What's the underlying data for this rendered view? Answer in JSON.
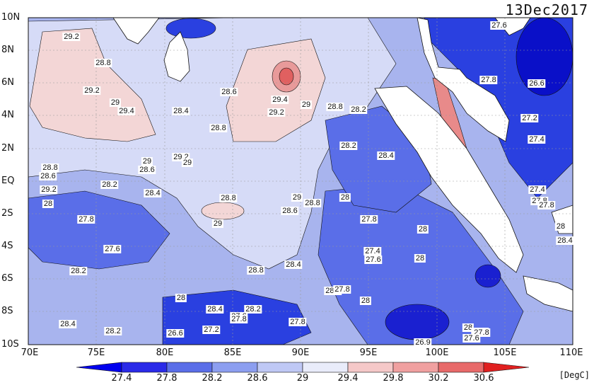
{
  "date": "13Dec2017",
  "units": "[DegC]",
  "map": {
    "lat_labels": [
      "10N",
      "8N",
      "6N",
      "4N",
      "2N",
      "EQ",
      "2S",
      "4S",
      "6S",
      "8S",
      "10S"
    ],
    "lon_labels": [
      "70E",
      "75E",
      "80E",
      "85E",
      "90E",
      "95E",
      "100E",
      "105E",
      "110E"
    ],
    "lon_range": [
      70,
      110
    ],
    "lat_range": [
      -10,
      10
    ],
    "contour_labels": [
      "29.2",
      "28.8",
      "29.2",
      "29",
      "29.4",
      "28.4",
      "28.8",
      "28.6",
      "29.4",
      "29.2",
      "29",
      "28.8",
      "28.2",
      "27.6",
      "27.8",
      "26.6",
      "27.2",
      "27.4",
      "28.2",
      "28.4",
      "29.2",
      "29",
      "28.8",
      "28.6",
      "29.2",
      "29",
      "28.6",
      "28",
      "28.2",
      "28.4",
      "28.8",
      "29",
      "28.8",
      "28.6",
      "28",
      "27.8",
      "27.8",
      "29",
      "28",
      "27.6",
      "27.4",
      "27.6",
      "27.4",
      "27.8",
      "27.8",
      "28",
      "28.4",
      "28.2",
      "28.8",
      "28.4",
      "28",
      "28.2",
      "27.8",
      "28",
      "28.4",
      "28.2",
      "27.6",
      "27.8",
      "28.4",
      "28.2",
      "26.6",
      "27.2",
      "27.8",
      "28",
      "27.8",
      "26.9",
      "28",
      "27.8",
      "27.6"
    ]
  },
  "colorbar": {
    "ticks": [
      "27.4",
      "27.8",
      "28.2",
      "28.6",
      "29",
      "29.4",
      "29.8",
      "30.2",
      "30.6"
    ],
    "colors": [
      "#0000ee",
      "#2a2ae8",
      "#5a6ee8",
      "#8c9ef0",
      "#bfc8f5",
      "#e9ecfa",
      "#f5c8c8",
      "#f0a0a0",
      "#e86a6a",
      "#e02020"
    ]
  }
}
